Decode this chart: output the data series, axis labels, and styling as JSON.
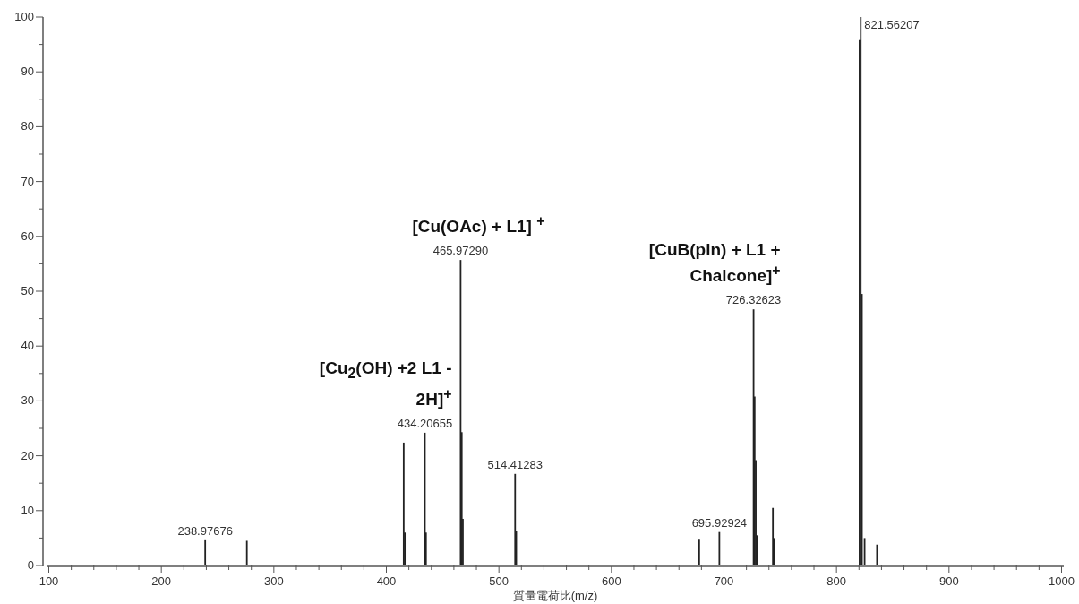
{
  "chart_data": {
    "type": "bar",
    "xlabel": "質量電荷比(m/z)",
    "x": [
      238.98,
      276,
      415.4,
      416.4,
      434.21,
      435.2,
      465.97,
      467.0,
      468.0,
      514.41,
      515.4,
      678,
      695.93,
      726.33,
      727.3,
      728.3,
      729.3,
      743.5,
      744.5,
      820.5,
      821.56,
      822.6,
      825,
      836
    ],
    "series": [
      {
        "color": "#222222",
        "values": [
          4.6,
          4.5,
          22.4,
          6,
          24.2,
          6,
          55.7,
          24.3,
          8.5,
          16.7,
          6.3,
          4.7,
          6.1,
          46.7,
          30.8,
          19.2,
          5.5,
          10.5,
          5,
          95.8,
          100,
          49.5,
          5,
          3.8
        ]
      }
    ],
    "xlim": [
      98,
      1002
    ],
    "ylim": [
      0,
      100
    ],
    "xticks": [
      100,
      200,
      300,
      400,
      500,
      600,
      700,
      800,
      900,
      1000
    ],
    "yticks": [
      0,
      10,
      20,
      30,
      40,
      50,
      60,
      70,
      80,
      90,
      100
    ],
    "annotations": [
      {
        "text": "238.97676",
        "x": 238.98,
        "y": 4.6
      },
      {
        "text": "434.20655",
        "x": 434.21,
        "y": 24.2
      },
      {
        "text": "465.97290",
        "x": 465.97,
        "y": 55.7
      },
      {
        "text": "514.41283",
        "x": 514.41,
        "y": 16.7
      },
      {
        "text": "695.92924",
        "x": 695.93,
        "y": 6.1
      },
      {
        "text": "726.32623",
        "x": 726.33,
        "y": 46.7
      },
      {
        "text": "821.56207",
        "x": 821.56,
        "y": 100
      },
      {
        "text": "[Cu(OAc) + L1] $^{+}$",
        "x": 465.97,
        "y": 55.7
      },
      {
        "text": "[Cu$_{2}$(OH) +2 L1 - 2H]$^{+}$",
        "x": 434.21,
        "y": 24.2
      },
      {
        "text": "[CuB(pin) + L1 + Chalcone]$^{+}$",
        "x": 726.33,
        "y": 46.7
      }
    ]
  }
}
